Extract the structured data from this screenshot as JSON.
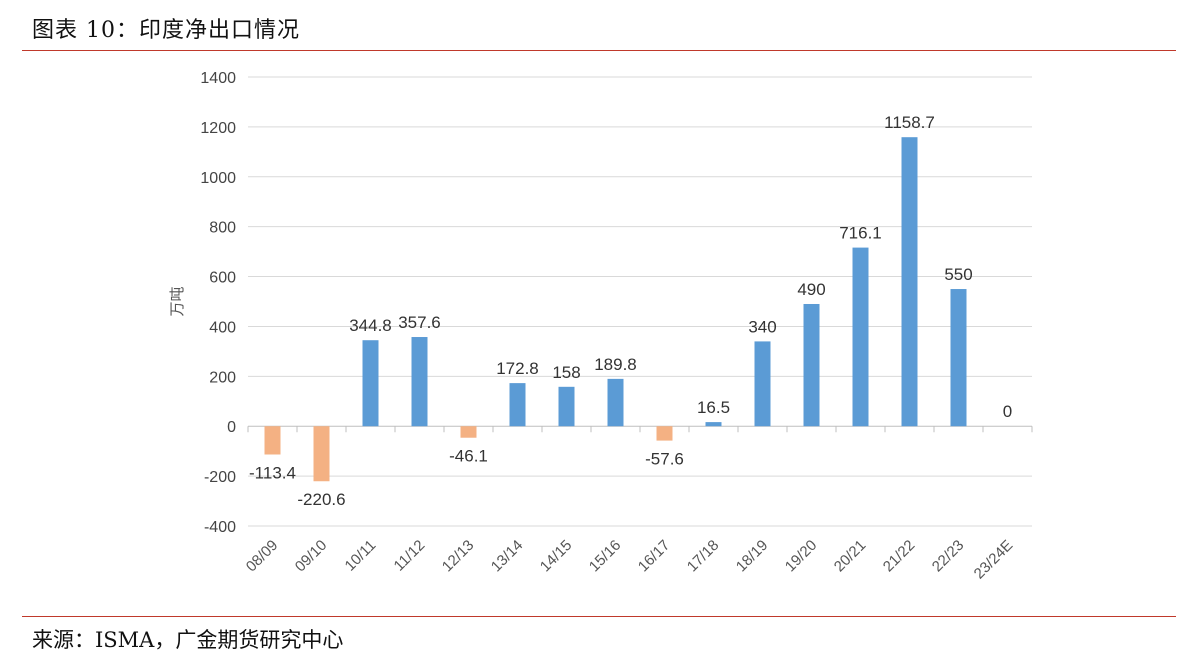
{
  "header": {
    "title": "图表 10：印度净出口情况"
  },
  "footer": {
    "source": "来源：ISMA，广金期货研究中心"
  },
  "colors": {
    "positive": "#5b9bd5",
    "negative": "#f4b183",
    "grid": "#d9d9d9",
    "rule": "#c0392b"
  },
  "chart_data": {
    "type": "bar",
    "title": "",
    "xlabel": "",
    "ylabel": "万吨",
    "ylim": [
      -400,
      1400
    ],
    "yticks": [
      -400,
      -200,
      0,
      200,
      400,
      600,
      800,
      1000,
      1200,
      1400
    ],
    "grid": true,
    "categories": [
      "08/09",
      "09/10",
      "10/11",
      "11/12",
      "12/13",
      "13/14",
      "14/15",
      "15/16",
      "16/17",
      "17/18",
      "18/19",
      "19/20",
      "20/21",
      "21/22",
      "22/23",
      "23/24E"
    ],
    "values": [
      -113.4,
      -220.6,
      344.8,
      357.6,
      -46.1,
      172.8,
      158,
      189.8,
      -57.6,
      16.5,
      340,
      490,
      716.1,
      1158.7,
      550,
      0
    ],
    "labels": [
      "-113.4",
      "-220.6",
      "344.8",
      "357.6",
      "-46.1",
      "172.8",
      "158",
      "189.8",
      "-57.6",
      "16.5",
      "340",
      "490",
      "716.1",
      "1158.7",
      "550",
      "0"
    ]
  }
}
